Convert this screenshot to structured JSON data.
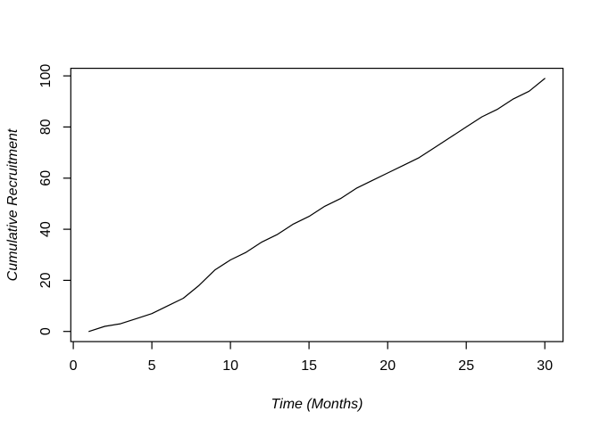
{
  "figure": {
    "background": "#ffffff",
    "foreground": "#000000"
  },
  "chart_data": {
    "type": "line",
    "title": "",
    "xlabel": "Time (Months)",
    "ylabel": "Cumulative Recruitment",
    "x": [
      1,
      2,
      3,
      4,
      5,
      6,
      7,
      8,
      9,
      10,
      11,
      12,
      13,
      14,
      15,
      16,
      17,
      18,
      19,
      20,
      21,
      22,
      23,
      24,
      25,
      26,
      27,
      28,
      29,
      30
    ],
    "series": [
      {
        "name": "cumulative-recruitment",
        "color": "#000000",
        "values": [
          0,
          2,
          3,
          5,
          7,
          10,
          13,
          18,
          24,
          28,
          31,
          35,
          38,
          42,
          45,
          49,
          52,
          56,
          59,
          62,
          65,
          68,
          72,
          76,
          80,
          84,
          87,
          91,
          94,
          99
        ]
      }
    ],
    "xticks": [
      0,
      5,
      10,
      15,
      20,
      25,
      30
    ],
    "yticks": [
      0,
      20,
      40,
      60,
      80,
      100
    ],
    "xlim": [
      -0.16,
      31.16
    ],
    "ylim": [
      -3.96,
      102.96
    ],
    "grid": false,
    "legend_position": "none",
    "line_style": "solid"
  }
}
